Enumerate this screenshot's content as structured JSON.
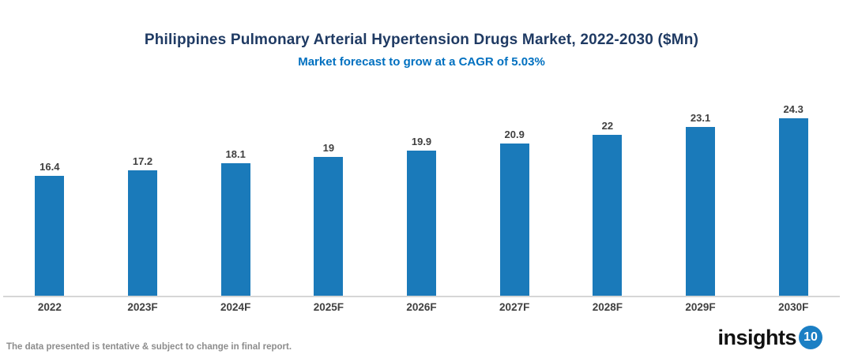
{
  "header": {
    "title": "Philippines Pulmonary Arterial Hypertension Drugs Market, 2022-2030 ($Mn)",
    "subtitle": "Market forecast to grow at a CAGR of 5.03%"
  },
  "chart_data": {
    "type": "bar",
    "title": "Philippines Pulmonary Arterial Hypertension Drugs Market, 2022-2030 ($Mn)",
    "subtitle": "Market forecast to grow at a CAGR of 5.03%",
    "categories": [
      "2022",
      "2023F",
      "2024F",
      "2025F",
      "2026F",
      "2027F",
      "2028F",
      "2029F",
      "2030F"
    ],
    "values": [
      16.4,
      17.2,
      18.1,
      19,
      19.9,
      20.9,
      22,
      23.1,
      24.3
    ],
    "data_labels": [
      "16.4",
      "17.2",
      "18.1",
      "19",
      "19.9",
      "20.9",
      "22",
      "23.1",
      "24.3"
    ],
    "xlabel": "",
    "ylabel": "",
    "ylim": [
      0,
      26
    ],
    "grid": false,
    "legend_position": "none",
    "bar_color": "#1a7aba"
  },
  "colors": {
    "title": "#1f3a63",
    "subtitle": "#0070c0",
    "bar": "#1a7aba",
    "value_label": "#404040",
    "axis_label": "#404040",
    "axis_line": "#d6d6d6",
    "footer_text": "#8c8c8c",
    "logo_text": "#111111",
    "logo_badge_bg": "#1b7fc4"
  },
  "footer": {
    "note": "The data presented is tentative & subject to change in final report.",
    "logo_text": "insights",
    "logo_badge": "10"
  }
}
